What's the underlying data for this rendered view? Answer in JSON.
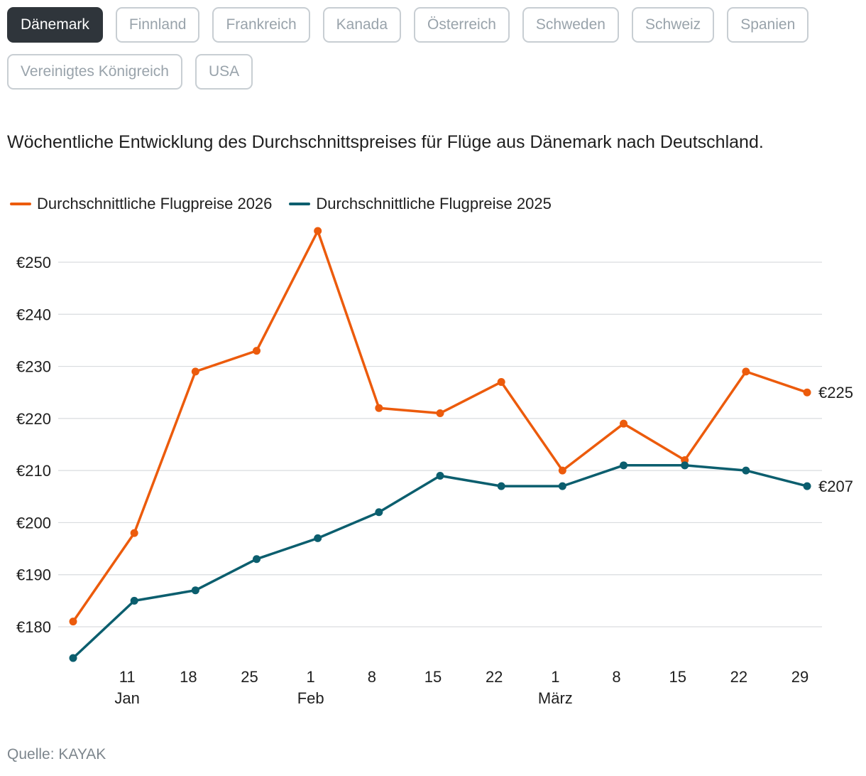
{
  "filters": [
    {
      "label": "Dänemark",
      "active": true
    },
    {
      "label": "Finnland",
      "active": false
    },
    {
      "label": "Frankreich",
      "active": false
    },
    {
      "label": "Kanada",
      "active": false
    },
    {
      "label": "Österreich",
      "active": false
    },
    {
      "label": "Schweden",
      "active": false
    },
    {
      "label": "Schweiz",
      "active": false
    },
    {
      "label": "Spanien",
      "active": false
    },
    {
      "label": "Vereinigtes Königreich",
      "active": false
    },
    {
      "label": "USA",
      "active": false
    }
  ],
  "source": "Quelle: KAYAK",
  "chart_data": {
    "type": "line",
    "subtitle": "Wöchentliche Entwicklung des Durchschnittspreises für Flüge aus Dänemark nach Deutschland.",
    "x_ticks": [
      "11",
      "18",
      "25",
      "1",
      "8",
      "15",
      "22",
      "1",
      "8",
      "15",
      "22",
      "29"
    ],
    "month_labels": [
      {
        "label": "Jan",
        "week_index": 1
      },
      {
        "label": "Feb",
        "week_index": 4
      },
      {
        "label": "März",
        "week_index": 8
      }
    ],
    "y_ticks": [
      "€180",
      "€190",
      "€200",
      "€210",
      "€220",
      "€230",
      "€240",
      "€250"
    ],
    "y_tick_values": [
      180,
      190,
      200,
      210,
      220,
      230,
      240,
      250
    ],
    "ylim": [
      172,
      256
    ],
    "grid": true,
    "legend_position": "top-left",
    "series": [
      {
        "name": "Durchschnittliche Flugpreise 2026",
        "color": "#ec5b0c",
        "values": [
          181,
          198,
          229,
          233,
          256,
          222,
          221,
          227,
          210,
          219,
          212,
          229,
          225
        ],
        "end_label": "€225"
      },
      {
        "name": "Durchschnittliche Flugpreise 2025",
        "color": "#0b5e6e",
        "values": [
          174,
          185,
          187,
          193,
          197,
          202,
          209,
          207,
          207,
          211,
          211,
          210,
          207
        ],
        "end_label": "€207"
      }
    ]
  }
}
